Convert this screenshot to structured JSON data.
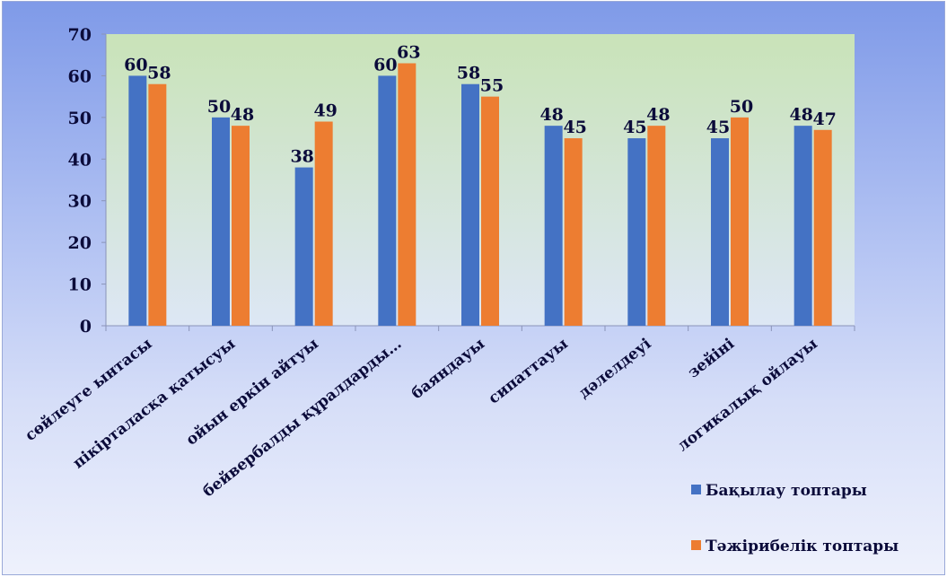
{
  "chart_data": {
    "type": "bar",
    "categories": [
      "сөйлеуге ынтасы",
      "пікірталасқа қатысуы",
      "ойын еркін айтуы",
      "бейвербалды құралдарды…",
      "баяндауы",
      "сипаттауы",
      "дәлелдеуі",
      "зейіні",
      "логикалық ойлауы"
    ],
    "series": [
      {
        "name": "Бақылау топтары",
        "color": "#4472c4",
        "values": [
          60,
          50,
          38,
          60,
          58,
          48,
          45,
          45,
          48
        ]
      },
      {
        "name": "Тәжірибелік топтары",
        "color": "#ed7d31",
        "values": [
          58,
          48,
          49,
          63,
          55,
          45,
          48,
          50,
          47
        ]
      }
    ],
    "y_ticks": [
      "0",
      "10",
      "20",
      "30",
      "40",
      "50",
      "60",
      "70"
    ],
    "ylim": [
      0,
      70
    ],
    "grid": false,
    "legend_position": "bottom-right",
    "plot_area_gradient": [
      "#c9e3b8",
      "#dde7f5"
    ]
  }
}
